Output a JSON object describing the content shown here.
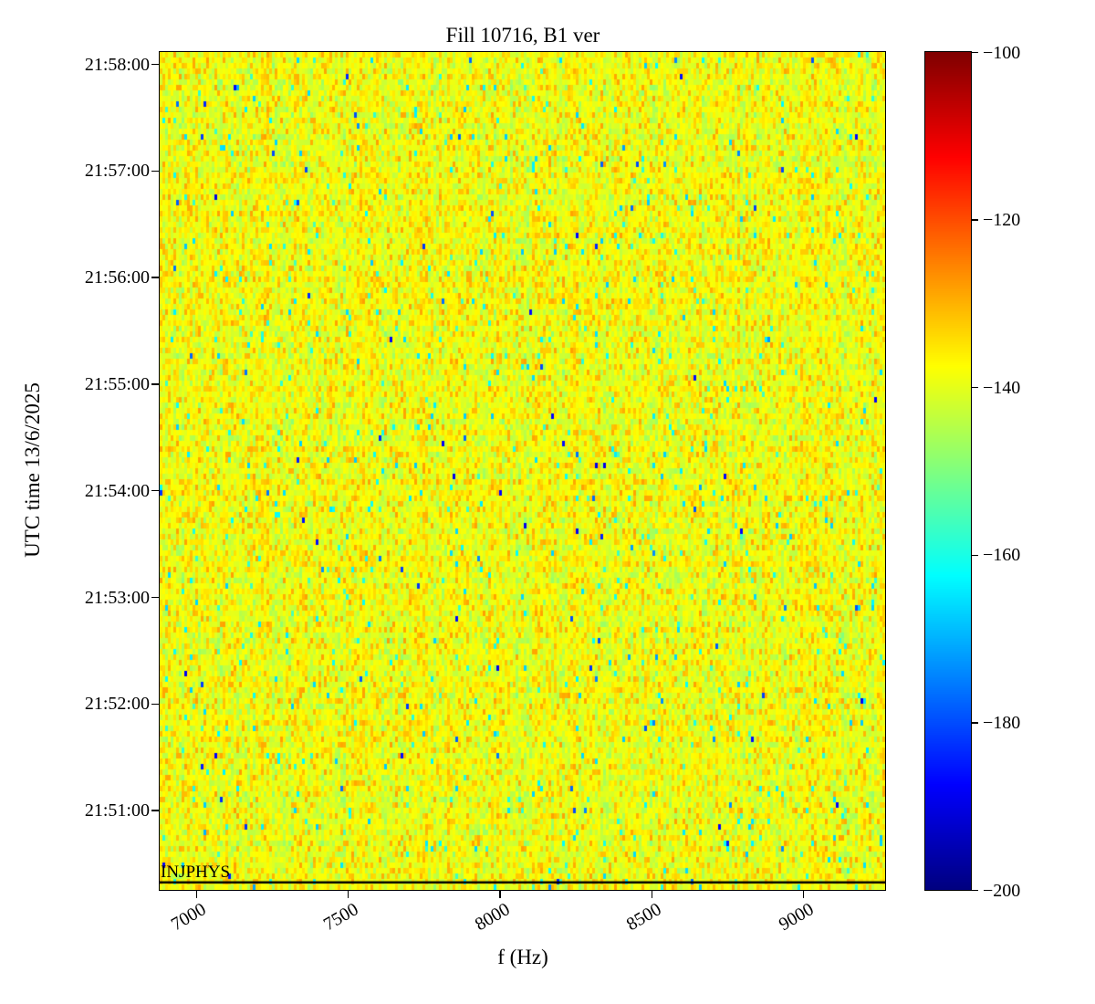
{
  "chart_data": {
    "type": "heatmap",
    "title": "Fill 10716, B1 ver",
    "xlabel": "f (Hz)",
    "ylabel": "UTC time 13/6/2025",
    "x_axis": {
      "range_hz": [
        6880,
        9270
      ],
      "tick_values": [
        7000,
        7500,
        8000,
        8500,
        9000
      ],
      "tick_labels": [
        "7000",
        "7500",
        "8000",
        "8500",
        "9000"
      ]
    },
    "y_axis": {
      "tick_labels": [
        "21:58:00",
        "21:57:00",
        "21:56:00",
        "21:55:00",
        "21:54:00",
        "21:53:00",
        "21:52:00",
        "21:51:00"
      ],
      "direction": "time increases upward"
    },
    "colorbar": {
      "colormap": "jet",
      "range_db": [
        -200,
        -100
      ],
      "tick_values": [
        -100,
        -120,
        -140,
        -160,
        -180,
        -200
      ],
      "tick_labels": [
        "−100",
        "−120",
        "−140",
        "−160",
        "−180",
        "−200"
      ]
    },
    "annotations": [
      {
        "text": "INJPHYS",
        "position": "bottom-left-above-black-line"
      }
    ],
    "noise_model": {
      "typical_value_db": -139,
      "value_spread_db": 9,
      "sparse_low_outliers_db": [
        -190,
        -155
      ],
      "sparse_high_outliers_db": [
        -131,
        -124
      ]
    }
  }
}
